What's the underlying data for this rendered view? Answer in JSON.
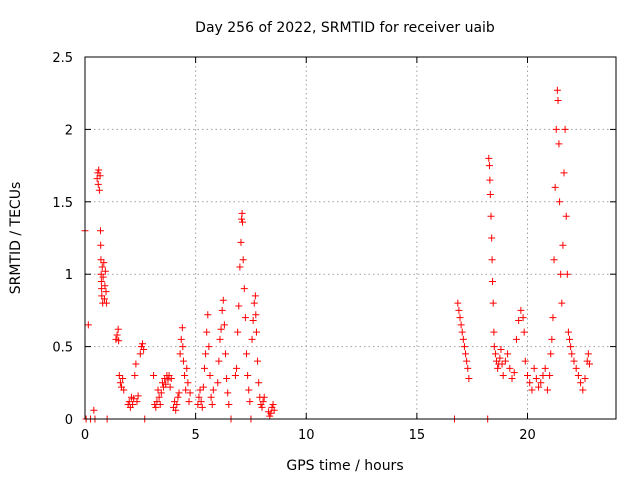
{
  "chart_data": {
    "type": "scatter",
    "title": "Day 256 of 2022, SRMTID for receiver uaib",
    "xlabel": "GPS time / hours",
    "ylabel": "SRMTID / TECUs",
    "xlim": [
      0,
      24
    ],
    "ylim": [
      0,
      2.5
    ],
    "xticks": [
      0,
      5,
      10,
      15,
      20
    ],
    "yticks": [
      0,
      0.5,
      1,
      1.5,
      2,
      2.5
    ],
    "xtick_labels": [
      "0",
      "5",
      "10",
      "15",
      "20"
    ],
    "ytick_labels": [
      "0",
      "0.5",
      "1",
      "1.5",
      "2",
      "2.5"
    ],
    "grid": true,
    "marker": "+",
    "color": "#ff0000",
    "series": [
      {
        "name": "SRMTID",
        "points": [
          [
            0.0,
            1.3
          ],
          [
            0.05,
            0
          ],
          [
            0.15,
            0.65
          ],
          [
            0.25,
            0
          ],
          [
            0.4,
            0.06
          ],
          [
            0.45,
            0
          ],
          [
            0.55,
            1.66
          ],
          [
            0.58,
            1.7
          ],
          [
            0.6,
            1.62
          ],
          [
            0.62,
            1.72
          ],
          [
            0.65,
            1.58
          ],
          [
            0.68,
            1.68
          ],
          [
            0.7,
            1.3
          ],
          [
            0.71,
            1.2
          ],
          [
            0.72,
            1.1
          ],
          [
            0.73,
            1.0
          ],
          [
            0.74,
            0.95
          ],
          [
            0.75,
            0.9
          ],
          [
            0.76,
            0.85
          ],
          [
            0.78,
            1.05
          ],
          [
            0.8,
            0.8
          ],
          [
            0.82,
            0.98
          ],
          [
            0.85,
            1.08
          ],
          [
            0.88,
            0.83
          ],
          [
            0.9,
            0.92
          ],
          [
            0.92,
            1.02
          ],
          [
            0.95,
            0.88
          ],
          [
            0.97,
            0.8
          ],
          [
            1.0,
            0
          ],
          [
            1.4,
            0.55
          ],
          [
            1.45,
            0.58
          ],
          [
            1.5,
            0.62
          ],
          [
            1.52,
            0.54
          ],
          [
            1.55,
            0.3
          ],
          [
            1.6,
            0.25
          ],
          [
            1.65,
            0.22
          ],
          [
            1.7,
            0.28
          ],
          [
            1.75,
            0.2
          ],
          [
            1.95,
            0.1
          ],
          [
            2.0,
            0.12
          ],
          [
            2.05,
            0.08
          ],
          [
            2.1,
            0.15
          ],
          [
            2.15,
            0.1
          ],
          [
            2.2,
            0.14
          ],
          [
            2.25,
            0.3
          ],
          [
            2.3,
            0.38
          ],
          [
            2.35,
            0.12
          ],
          [
            2.4,
            0.16
          ],
          [
            2.5,
            0.45
          ],
          [
            2.55,
            0.5
          ],
          [
            2.6,
            0.52
          ],
          [
            2.65,
            0.48
          ],
          [
            2.7,
            0
          ],
          [
            3.1,
            0.3
          ],
          [
            3.15,
            0.1
          ],
          [
            3.2,
            0.08
          ],
          [
            3.25,
            0.12
          ],
          [
            3.3,
            0.2
          ],
          [
            3.35,
            0.15
          ],
          [
            3.4,
            0.1
          ],
          [
            3.45,
            0.18
          ],
          [
            3.5,
            0.25
          ],
          [
            3.55,
            0.22
          ],
          [
            3.6,
            0.28
          ],
          [
            3.65,
            0.24
          ],
          [
            3.7,
            0.3
          ],
          [
            3.75,
            0.27
          ],
          [
            3.8,
            0.3
          ],
          [
            3.85,
            0.22
          ],
          [
            3.9,
            0.28
          ],
          [
            4.0,
            0.08
          ],
          [
            4.05,
            0.12
          ],
          [
            4.1,
            0.06
          ],
          [
            4.15,
            0.1
          ],
          [
            4.2,
            0.15
          ],
          [
            4.25,
            0.18
          ],
          [
            4.3,
            0.45
          ],
          [
            4.35,
            0.55
          ],
          [
            4.4,
            0.63
          ],
          [
            4.42,
            0.5
          ],
          [
            4.45,
            0.4
          ],
          [
            4.5,
            0.3
          ],
          [
            4.55,
            0.2
          ],
          [
            4.6,
            0.35
          ],
          [
            4.65,
            0.25
          ],
          [
            4.7,
            0.12
          ],
          [
            4.75,
            0.18
          ],
          [
            5.1,
            0.1
          ],
          [
            5.15,
            0.15
          ],
          [
            5.2,
            0.2
          ],
          [
            5.25,
            0.12
          ],
          [
            5.3,
            0.08
          ],
          [
            5.35,
            0.22
          ],
          [
            5.4,
            0.35
          ],
          [
            5.45,
            0.45
          ],
          [
            5.5,
            0.6
          ],
          [
            5.55,
            0.72
          ],
          [
            5.6,
            0.5
          ],
          [
            5.65,
            0.3
          ],
          [
            5.7,
            0.15
          ],
          [
            5.75,
            0.1
          ],
          [
            5.8,
            0.2
          ],
          [
            6.0,
            0.25
          ],
          [
            6.05,
            0.4
          ],
          [
            6.1,
            0.55
          ],
          [
            6.15,
            0.62
          ],
          [
            6.2,
            0.75
          ],
          [
            6.25,
            0.82
          ],
          [
            6.3,
            0.65
          ],
          [
            6.35,
            0.45
          ],
          [
            6.4,
            0.28
          ],
          [
            6.45,
            0.18
          ],
          [
            6.5,
            0.1
          ],
          [
            6.6,
            0
          ],
          [
            6.8,
            0.3
          ],
          [
            6.85,
            0.35
          ],
          [
            6.9,
            0.6
          ],
          [
            6.95,
            0.78
          ],
          [
            7.0,
            1.05
          ],
          [
            7.05,
            1.22
          ],
          [
            7.08,
            1.38
          ],
          [
            7.1,
            1.42
          ],
          [
            7.12,
            1.36
          ],
          [
            7.15,
            1.1
          ],
          [
            7.2,
            0.9
          ],
          [
            7.25,
            0.7
          ],
          [
            7.3,
            0.45
          ],
          [
            7.35,
            0.3
          ],
          [
            7.4,
            0.2
          ],
          [
            7.45,
            0.12
          ],
          [
            7.5,
            0
          ],
          [
            7.55,
            0.55
          ],
          [
            7.6,
            0.68
          ],
          [
            7.65,
            0.8
          ],
          [
            7.7,
            0.85
          ],
          [
            7.72,
            0.72
          ],
          [
            7.75,
            0.6
          ],
          [
            7.8,
            0.4
          ],
          [
            7.85,
            0.25
          ],
          [
            7.9,
            0.15
          ],
          [
            7.95,
            0.1
          ],
          [
            8.0,
            0.08
          ],
          [
            8.05,
            0.12
          ],
          [
            8.1,
            0.15
          ],
          [
            8.3,
            0.05
          ],
          [
            8.35,
            0.02
          ],
          [
            8.4,
            0.04
          ],
          [
            8.45,
            0.08
          ],
          [
            8.5,
            0.1
          ],
          [
            8.55,
            0.06
          ],
          [
            16.7,
            0
          ],
          [
            16.85,
            0.8
          ],
          [
            16.9,
            0.75
          ],
          [
            16.95,
            0.7
          ],
          [
            17.0,
            0.65
          ],
          [
            17.05,
            0.6
          ],
          [
            17.1,
            0.55
          ],
          [
            17.15,
            0.5
          ],
          [
            17.2,
            0.45
          ],
          [
            17.25,
            0.4
          ],
          [
            17.3,
            0.35
          ],
          [
            17.35,
            0.28
          ],
          [
            18.2,
            0
          ],
          [
            18.25,
            1.8
          ],
          [
            18.28,
            1.75
          ],
          [
            18.3,
            1.65
          ],
          [
            18.32,
            1.55
          ],
          [
            18.35,
            1.4
          ],
          [
            18.38,
            1.25
          ],
          [
            18.4,
            1.1
          ],
          [
            18.42,
            0.95
          ],
          [
            18.45,
            0.8
          ],
          [
            18.48,
            0.6
          ],
          [
            18.5,
            0.5
          ],
          [
            18.55,
            0.45
          ],
          [
            18.6,
            0.4
          ],
          [
            18.65,
            0.35
          ],
          [
            18.7,
            0.38
          ],
          [
            18.75,
            0.42
          ],
          [
            18.8,
            0.48
          ],
          [
            18.85,
            0.38
          ],
          [
            18.9,
            0.3
          ],
          [
            19.0,
            0.4
          ],
          [
            19.1,
            0.45
          ],
          [
            19.2,
            0.35
          ],
          [
            19.3,
            0.28
          ],
          [
            19.4,
            0.32
          ],
          [
            19.5,
            0.55
          ],
          [
            19.6,
            0.68
          ],
          [
            19.7,
            0.75
          ],
          [
            19.8,
            0.7
          ],
          [
            19.85,
            0.6
          ],
          [
            19.9,
            0.4
          ],
          [
            20.0,
            0.3
          ],
          [
            20.1,
            0.25
          ],
          [
            20.2,
            0.2
          ],
          [
            20.3,
            0.35
          ],
          [
            20.4,
            0.28
          ],
          [
            20.5,
            0.22
          ],
          [
            20.6,
            0.25
          ],
          [
            20.7,
            0.3
          ],
          [
            20.8,
            0.35
          ],
          [
            20.9,
            0.2
          ],
          [
            21.0,
            0.3
          ],
          [
            21.05,
            0.45
          ],
          [
            21.1,
            0.55
          ],
          [
            21.15,
            0.7
          ],
          [
            21.2,
            1.1
          ],
          [
            21.25,
            1.6
          ],
          [
            21.3,
            2.0
          ],
          [
            21.35,
            2.27
          ],
          [
            21.38,
            2.2
          ],
          [
            21.42,
            1.9
          ],
          [
            21.45,
            1.5
          ],
          [
            21.5,
            1.0
          ],
          [
            21.55,
            0.8
          ],
          [
            21.6,
            1.2
          ],
          [
            21.65,
            1.7
          ],
          [
            21.7,
            2.0
          ],
          [
            21.75,
            1.4
          ],
          [
            21.8,
            1.0
          ],
          [
            21.85,
            0.6
          ],
          [
            21.9,
            0.55
          ],
          [
            21.95,
            0.5
          ],
          [
            22.0,
            0.45
          ],
          [
            22.1,
            0.4
          ],
          [
            22.2,
            0.35
          ],
          [
            22.3,
            0.3
          ],
          [
            22.4,
            0.25
          ],
          [
            22.5,
            0.2
          ],
          [
            22.6,
            0.28
          ],
          [
            22.7,
            0.4
          ],
          [
            22.75,
            0.45
          ],
          [
            22.8,
            0.38
          ]
        ]
      }
    ]
  }
}
